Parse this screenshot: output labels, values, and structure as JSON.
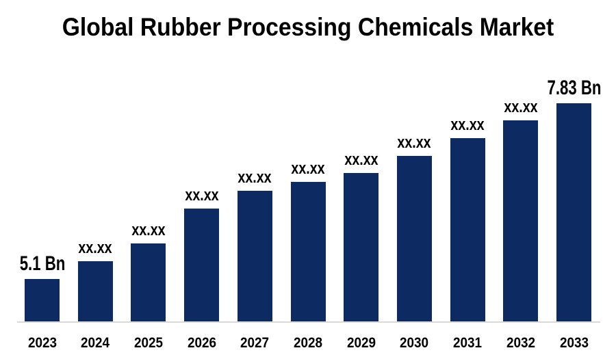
{
  "page": {
    "background": "#ffffff"
  },
  "chart": {
    "title": "Global Rubber Processing Chemicals Market"
  },
  "chart_data": {
    "type": "bar",
    "title": "Global Rubber Processing Chemicals Market",
    "xlabel": "",
    "ylabel": "",
    "unit": "Bn",
    "categories": [
      "2023",
      "2024",
      "2025",
      "2026",
      "2027",
      "2028",
      "2029",
      "2030",
      "2031",
      "2032",
      "2033"
    ],
    "bar_labels": [
      "5.1 Bn",
      "xx.xx",
      "xx.xx",
      "xx.xx",
      "xx.xx",
      "xx.xx",
      "xx.xx",
      "xx.xx",
      "xx.xx",
      "xx.xx",
      "7.83 Bn"
    ],
    "labeled_values_bn": {
      "2023": 5.1,
      "2033": 7.83
    },
    "values_bn_estimated": [
      5.1,
      5.38,
      5.65,
      6.19,
      6.47,
      6.61,
      6.75,
      7.01,
      7.29,
      7.56,
      7.83
    ],
    "ylim_bn": [
      4.44,
      8.0
    ],
    "layout_hints": {
      "grid": false,
      "legend": false,
      "y_axis_visible": false,
      "x_axis_line_visible": true,
      "value_labels_position": "above-bars"
    },
    "colors": {
      "bar": "#0e2a63",
      "axis_line": "#d9d9d9",
      "text": "#000000"
    }
  }
}
